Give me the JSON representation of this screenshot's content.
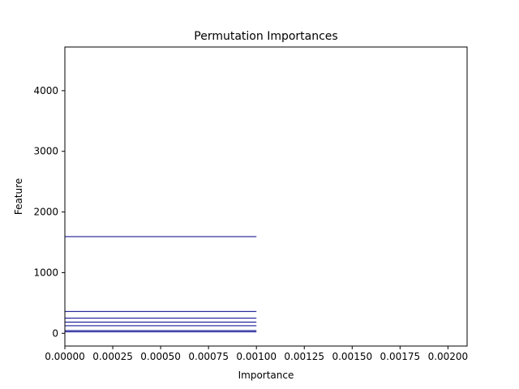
{
  "chart_data": {
    "type": "bar",
    "orientation": "horizontal",
    "title": "Permutation Importances",
    "xlabel": "Importance",
    "ylabel": "Feature",
    "xlim": [
      0,
      0.0021
    ],
    "ylim": [
      -210,
      4720
    ],
    "x_ticks": [
      0,
      0.00025,
      0.0005,
      0.00075,
      0.001,
      0.00125,
      0.0015,
      0.00175,
      0.002
    ],
    "x_tick_labels": [
      "0.00000",
      "0.00025",
      "0.00050",
      "0.00075",
      "0.00100",
      "0.00125",
      "0.00150",
      "0.00175",
      "0.00200"
    ],
    "y_ticks": [
      0,
      1000,
      2000,
      3000,
      4000
    ],
    "y_tick_labels": [
      "0",
      "1000",
      "2000",
      "3000",
      "4000"
    ],
    "bar_color": "#00008b",
    "bars": [
      {
        "feature": 1594,
        "importance": 0.001
      },
      {
        "feature": 360,
        "importance": 0.001
      },
      {
        "feature": 250,
        "importance": 0.001
      },
      {
        "feature": 185,
        "importance": 0.001
      },
      {
        "feature": 125,
        "importance": 0.001
      },
      {
        "feature": 45,
        "importance": 0.001
      },
      {
        "feature": 25,
        "importance": 0.001
      }
    ],
    "grid": false,
    "legend": "none"
  }
}
